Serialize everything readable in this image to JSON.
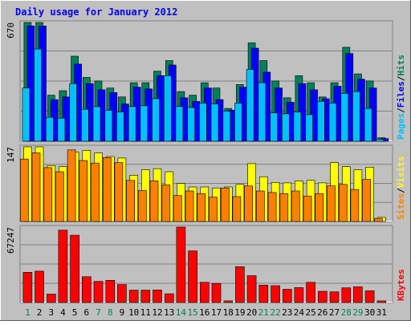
{
  "chart_data": {
    "type": "bar",
    "title": "Daily usage for January 2012",
    "categories": [
      "1",
      "2",
      "3",
      "4",
      "5",
      "6",
      "7",
      "8",
      "9",
      "10",
      "11",
      "12",
      "13",
      "14",
      "15",
      "16",
      "17",
      "18",
      "19",
      "20",
      "21",
      "22",
      "23",
      "24",
      "25",
      "26",
      "27",
      "28",
      "29",
      "30",
      "31"
    ],
    "weekend_days": [
      "1",
      "7",
      "8",
      "14",
      "15",
      "21",
      "22",
      "28",
      "29"
    ],
    "panels": [
      {
        "id": "top",
        "ymax": 670,
        "ymax_label": "670",
        "legend": [
          "Pages",
          "/",
          "Files",
          "/",
          "Hits"
        ],
        "series": [
          {
            "name": "Hits",
            "color": "#00805c",
            "values": [
              670,
              670,
              260,
              285,
              480,
              360,
              340,
              300,
              250,
              330,
              330,
              395,
              455,
              280,
              260,
              330,
              300,
              185,
              320,
              555,
              455,
              340,
              245,
              370,
              330,
              250,
              330,
              530,
              380,
              340,
              20
            ]
          },
          {
            "name": "Files",
            "color": "#0000ff",
            "values": [
              650,
              650,
              235,
              250,
              435,
              325,
              290,
              275,
              210,
              305,
              295,
              370,
              430,
              245,
              225,
              300,
              235,
              175,
              305,
              525,
              390,
              300,
              220,
              325,
              290,
              240,
              310,
              495,
              350,
              300,
              15
            ]
          },
          {
            "name": "Pages",
            "color": "#00c0ff",
            "values": [
              300,
              520,
              135,
              130,
              325,
              180,
              195,
              175,
              165,
              195,
              200,
              240,
              370,
              195,
              190,
              215,
              210,
              170,
              215,
              405,
              330,
              160,
              155,
              165,
              150,
              225,
              215,
              270,
              280,
              185,
              10
            ]
          }
        ]
      },
      {
        "id": "mid",
        "ymax": 147,
        "ymax_label": "147",
        "legend": [
          "Sites",
          "/",
          "Visits"
        ],
        "series": [
          {
            "name": "Visits",
            "color": "#ffff00",
            "values": [
              147,
              147,
              110,
              108,
              137,
              140,
              135,
              128,
              125,
              91,
              102,
              104,
              98,
              75,
              68,
              68,
              66,
              68,
              73,
              114,
              88,
              77,
              76,
              80,
              81,
              76,
              116,
              108,
              102,
              107,
              8
            ]
          },
          {
            "name": "Sites",
            "color": "#ff8000",
            "values": [
              123,
              135,
              106,
              98,
              141,
              120,
              115,
              126,
              116,
              81,
              61,
              80,
              72,
              51,
              60,
              55,
              48,
              66,
              49,
              70,
              60,
              57,
              55,
              60,
              50,
              55,
              70,
              73,
              63,
              83,
              6
            ]
          }
        ]
      },
      {
        "id": "bot",
        "ymax": 67247,
        "ymax_label": "67247",
        "legend": [
          "KBytes"
        ],
        "series": [
          {
            "name": "KBytes",
            "color": "#ff0000",
            "values": [
              27000,
              28000,
              7500,
              64500,
              60000,
              23000,
              18800,
              19800,
              16000,
              11000,
              11000,
              11200,
              7800,
              67247,
              46000,
              18000,
              17000,
              1500,
              32000,
              24000,
              15500,
              15000,
              11800,
              13300,
              18000,
              10000,
              9500,
              13100,
              14000,
              10500,
              1500
            ]
          }
        ]
      }
    ]
  }
}
